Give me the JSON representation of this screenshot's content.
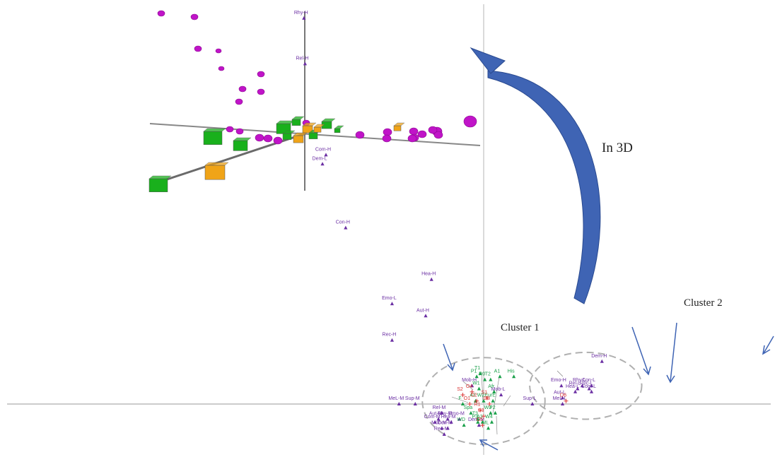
{
  "chart_data": {
    "type": "scatter",
    "annotations": {
      "in3d": "In 3D",
      "cluster1": "Cluster 1",
      "cluster2": "Cluster 2"
    },
    "series": [
      {
        "kind": "purple-triangle",
        "color": "#6b2fa3",
        "points": [
          {
            "label": "Rhy-H",
            "x": -15.5,
            "y": 12.7
          },
          {
            "label": "Rel-H",
            "x": -15.4,
            "y": 11.2
          },
          {
            "label": "Com-H",
            "x": -13.6,
            "y": 8.2
          },
          {
            "label": "Dem-L",
            "x": -13.9,
            "y": 7.9
          },
          {
            "label": "Con-H",
            "x": -11.9,
            "y": 5.8
          },
          {
            "label": "Hea-H",
            "x": -4.5,
            "y": 4.1
          },
          {
            "label": "Emo-L",
            "x": -7.9,
            "y": 3.3
          },
          {
            "label": "Aut-H",
            "x": -5.0,
            "y": 2.9
          },
          {
            "label": "Rec-H",
            "x": -7.9,
            "y": 2.1
          },
          {
            "label": "MeL-M",
            "x": -7.3,
            "y": 0.0
          },
          {
            "label": "Sup-M",
            "x": -5.9,
            "y": 0.0
          },
          {
            "label": "Com-M",
            "x": -4.2,
            "y": -0.6
          },
          {
            "label": "Aut-M",
            "x": -3.9,
            "y": -0.5
          },
          {
            "label": "Rel-M",
            "x": -3.6,
            "y": -0.3
          },
          {
            "label": "Rhy-M",
            "x": -3.1,
            "y": -0.5
          },
          {
            "label": "Mob-M",
            "x": -3.6,
            "y": -0.8
          },
          {
            "label": "Rec-M",
            "x": -3.4,
            "y": -1.0
          },
          {
            "label": "Hea-M",
            "x": -2.8,
            "y": -0.6
          },
          {
            "label": "Con-M",
            "x": -3.1,
            "y": -0.8
          },
          {
            "label": "Emo-M",
            "x": -2.1,
            "y": -0.5
          },
          {
            "label": "Mob-H",
            "x": -1.0,
            "y": 0.6
          },
          {
            "label": "Mob-L",
            "x": 1.5,
            "y": 0.3
          },
          {
            "label": "Dem-M",
            "x": -0.4,
            "y": -0.7
          },
          {
            "label": "Sup-L",
            "x": 4.2,
            "y": 0.0
          },
          {
            "label": "Emo-H",
            "x": 6.7,
            "y": 0.6
          },
          {
            "label": "Aut-L",
            "x": 6.8,
            "y": 0.2
          },
          {
            "label": "MeL-L",
            "x": 6.8,
            "y": 0.0
          },
          {
            "label": "Rhy-L",
            "x": 8.5,
            "y": 0.6
          },
          {
            "label": "Rel-L",
            "x": 8.1,
            "y": 0.5
          },
          {
            "label": "Hea-L",
            "x": 7.9,
            "y": 0.4
          },
          {
            "label": "Con-L",
            "x": 9.3,
            "y": 0.6
          },
          {
            "label": "Rec-L",
            "x": 9.1,
            "y": 0.5
          },
          {
            "label": "Com-L",
            "x": 9.3,
            "y": 0.4
          },
          {
            "label": "Dem-H",
            "x": 10.2,
            "y": 1.4
          }
        ]
      },
      {
        "kind": "green-triangle",
        "color": "#1aa04a",
        "points": [
          {
            "label": "P1",
            "x": -0.6,
            "y": 0.9
          },
          {
            "label": "T1",
            "x": -0.3,
            "y": 1.0
          },
          {
            "label": "R0",
            "x": 0.1,
            "y": 0.8
          },
          {
            "label": "T2",
            "x": 0.6,
            "y": 0.8
          },
          {
            "label": "A1",
            "x": 1.4,
            "y": 0.9
          },
          {
            "label": "His",
            "x": 2.6,
            "y": 0.9
          },
          {
            "label": "W1",
            "x": -0.4,
            "y": 0.5
          },
          {
            "label": "Afr",
            "x": 0.9,
            "y": 0.4
          },
          {
            "label": "A2",
            "x": -0.7,
            "y": 0.1
          },
          {
            "label": "W2",
            "x": 0.0,
            "y": 0.1
          },
          {
            "label": "EurE",
            "x": 0.8,
            "y": 0.1
          },
          {
            "label": "F",
            "x": -1.8,
            "y": 0.0
          },
          {
            "label": "Spa",
            "x": -1.1,
            "y": -0.3
          },
          {
            "label": "T3",
            "x": -0.5,
            "y": -0.5
          },
          {
            "label": "P3",
            "x": -0.5,
            "y": -0.6
          },
          {
            "label": "A3",
            "x": -0.1,
            "y": -0.6
          },
          {
            "label": "W3",
            "x": 0.6,
            "y": -0.3
          },
          {
            "label": "P2",
            "x": 1.0,
            "y": -0.3
          },
          {
            "label": "W4",
            "x": 0.7,
            "y": -0.6
          },
          {
            "label": "ML",
            "x": 0.4,
            "y": -0.8
          },
          {
            "label": "WD",
            "x": -1.7,
            "y": -0.7
          }
        ]
      },
      {
        "kind": "red-cross",
        "color": "#d93030",
        "points": [
          {
            "label": "S2",
            "x": -1.8,
            "y": 0.3
          },
          {
            "label": "O4",
            "x": -1.0,
            "y": 0.4
          },
          {
            "label": "O1",
            "x": -1.2,
            "y": 0.0
          },
          {
            "label": "O2",
            "x": -0.6,
            "y": 0.1
          },
          {
            "label": "S1",
            "x": 0.3,
            "y": 0.2
          },
          {
            "label": "O3",
            "x": 0.5,
            "y": 0.0
          },
          {
            "label": "R1",
            "x": -0.3,
            "y": -0.2
          },
          {
            "label": "S3",
            "x": 0.0,
            "y": -0.4
          },
          {
            "label": "O5",
            "x": -0.1,
            "y": -0.7
          },
          {
            "label": "O6",
            "x": 7.1,
            "y": 0.1
          }
        ]
      }
    ],
    "clusters": [
      {
        "label": "Cluster 1",
        "cx": 0.0,
        "cy": 0.1,
        "rx": 2.3,
        "ry": 1.3
      },
      {
        "label": "Cluster 2",
        "cx": 8.8,
        "cy": 0.6,
        "rx": 2.1,
        "ry": 1.0
      }
    ]
  }
}
